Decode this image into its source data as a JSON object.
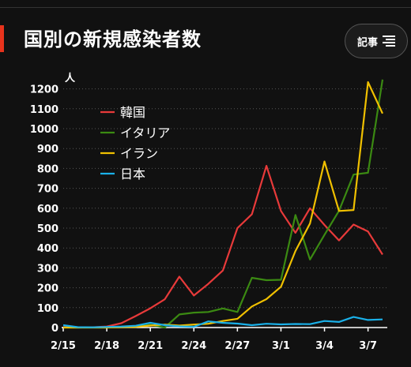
{
  "header": {
    "title": "国別の新規感染者数",
    "article_button_label": "記事",
    "article_icon": "list-icon"
  },
  "colors": {
    "background": "#111111",
    "accent": "#e8331c",
    "grid": "#555555"
  },
  "chart_data": {
    "type": "line",
    "title": "国別の新規感染者数",
    "ylabel": "人",
    "xlabel": "",
    "ylim": [
      0,
      1250
    ],
    "yticks": [
      0,
      100,
      200,
      300,
      400,
      500,
      600,
      700,
      800,
      900,
      1000,
      1100,
      1200
    ],
    "x": [
      "2/15",
      "2/16",
      "2/17",
      "2/18",
      "2/19",
      "2/20",
      "2/21",
      "2/22",
      "2/23",
      "2/24",
      "2/25",
      "2/26",
      "2/27",
      "2/28",
      "2/29",
      "3/1",
      "3/2",
      "3/3",
      "3/4",
      "3/5",
      "3/6",
      "3/7",
      "3/8"
    ],
    "xtick_labels": [
      "2/15",
      "2/18",
      "2/21",
      "2/24",
      "2/27",
      "3/1",
      "3/4",
      "3/7"
    ],
    "grid": true,
    "legend_position": "top-left",
    "series": [
      {
        "name": "韓国",
        "color": "#e83a3a",
        "values": [
          2,
          0,
          1,
          5,
          22,
          58,
          97,
          142,
          256,
          161,
          220,
          287,
          500,
          570,
          813,
          586,
          476,
          600,
          516,
          438,
          518,
          483,
          367
        ]
      },
      {
        "name": "イタリア",
        "color": "#3b8a12",
        "values": [
          0,
          0,
          0,
          0,
          3,
          3,
          14,
          0,
          66,
          75,
          78,
          96,
          78,
          250,
          238,
          240,
          566,
          342,
          466,
          587,
          769,
          778,
          1247
        ]
      },
      {
        "name": "イラン",
        "color": "#f0c000",
        "values": [
          0,
          0,
          0,
          0,
          2,
          3,
          10,
          15,
          10,
          15,
          19,
          33,
          44,
          106,
          143,
          205,
          385,
          523,
          835,
          586,
          591,
          1234,
          1076
        ]
      },
      {
        "name": "日本",
        "color": "#1ab0e8",
        "values": [
          12,
          2,
          1,
          3,
          5,
          9,
          24,
          12,
          6,
          4,
          31,
          24,
          20,
          12,
          19,
          16,
          18,
          17,
          33,
          28,
          53,
          38,
          41
        ]
      }
    ]
  }
}
